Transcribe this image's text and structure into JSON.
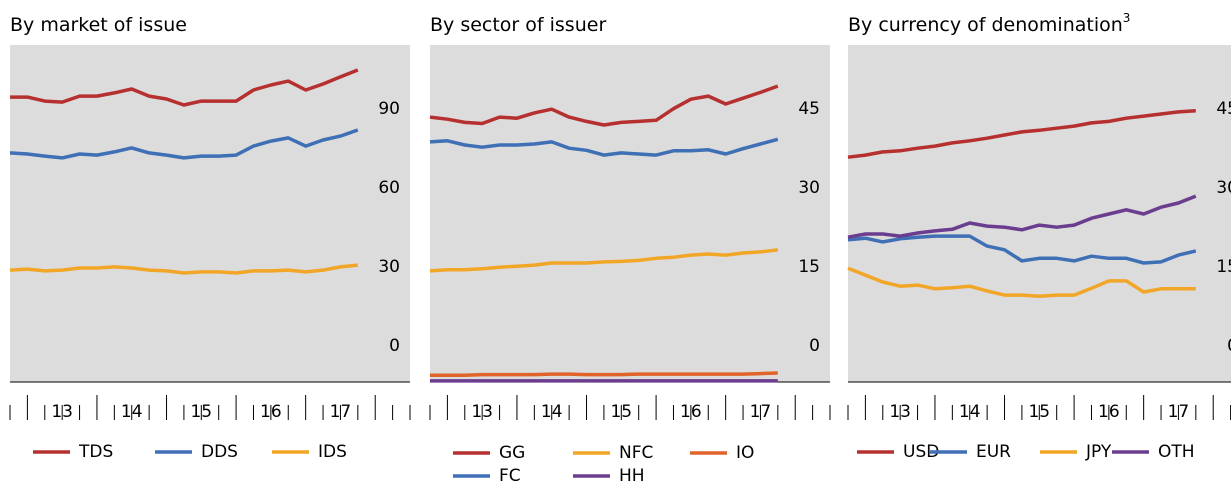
{
  "chart_data": [
    {
      "type": "line",
      "title": "By market of issue",
      "x": [
        2012.75,
        2013,
        2013.25,
        2013.5,
        2013.75,
        2014,
        2014.25,
        2014.5,
        2014.75,
        2015,
        2015.25,
        2015.5,
        2015.75,
        2016,
        2016.25,
        2016.5,
        2016.75,
        2017,
        2017.25,
        2017.5,
        2017.75
      ],
      "xlim": [
        2012.75,
        2018.5
      ],
      "xticks": [
        {
          "value": 2013.5,
          "label": "13"
        },
        {
          "value": 2014.5,
          "label": "14"
        },
        {
          "value": 2015.5,
          "label": "15"
        },
        {
          "value": 2016.5,
          "label": "16"
        },
        {
          "value": 2017.5,
          "label": "17"
        }
      ],
      "ylim": [
        0,
        128
      ],
      "yticks": [
        0,
        30,
        60,
        90
      ],
      "grid": false,
      "series": [
        {
          "name": "TDS",
          "color": "#b5302f",
          "values": [
            108.2,
            108.2,
            106.7,
            106.3,
            108.6,
            108.6,
            109.8,
            111.3,
            108.6,
            107.5,
            105.2,
            106.7,
            106.7,
            106.7,
            110.9,
            112.8,
            114.3,
            110.9,
            113.2,
            115.9,
            118.5
          ]
        },
        {
          "name": "DDS",
          "color": "#3f6fb5",
          "values": [
            87.0,
            86.6,
            85.8,
            85.1,
            86.6,
            86.2,
            87.4,
            88.9,
            87.0,
            86.2,
            85.1,
            85.8,
            85.8,
            86.2,
            89.6,
            91.5,
            92.7,
            89.6,
            91.9,
            93.4,
            95.7
          ]
        },
        {
          "name": "IDS",
          "color": "#f2a628",
          "values": [
            42.5,
            42.9,
            42.2,
            42.5,
            43.3,
            43.3,
            43.7,
            43.3,
            42.5,
            42.2,
            41.4,
            41.8,
            41.8,
            41.4,
            42.2,
            42.2,
            42.5,
            41.8,
            42.5,
            43.7,
            44.4
          ]
        }
      ]
    },
    {
      "type": "line",
      "title": "By sector of issuer",
      "x": [
        2012.75,
        2013,
        2013.25,
        2013.5,
        2013.75,
        2014,
        2014.25,
        2014.5,
        2014.75,
        2015,
        2015.25,
        2015.5,
        2015.75,
        2016,
        2016.25,
        2016.5,
        2016.75,
        2017,
        2017.25,
        2017.5,
        2017.75
      ],
      "xlim": [
        2012.75,
        2018.5
      ],
      "xticks": [
        {
          "value": 2013.5,
          "label": "13"
        },
        {
          "value": 2014.5,
          "label": "14"
        },
        {
          "value": 2015.5,
          "label": "15"
        },
        {
          "value": 2016.5,
          "label": "16"
        },
        {
          "value": 2017.5,
          "label": "17"
        }
      ],
      "ylim": [
        0,
        64
      ],
      "yticks": [
        0,
        15,
        30,
        45
      ],
      "grid": false,
      "series": [
        {
          "name": "GG",
          "color": "#b5302f",
          "values": [
            50.3,
            49.9,
            49.3,
            49.1,
            50.3,
            50.1,
            51.1,
            51.8,
            50.3,
            49.5,
            48.8,
            49.3,
            49.5,
            49.7,
            51.9,
            53.7,
            54.3,
            52.8,
            53.9,
            55.0,
            56.2
          ]
        },
        {
          "name": "NFC",
          "color": "#f2a628",
          "values": [
            21.1,
            21.3,
            21.3,
            21.5,
            21.8,
            22.0,
            22.2,
            22.6,
            22.6,
            22.6,
            22.8,
            22.9,
            23.1,
            23.5,
            23.7,
            24.1,
            24.3,
            24.1,
            24.5,
            24.7,
            25.1
          ]
        },
        {
          "name": "IO",
          "color": "#e0642a",
          "values": [
            1.3,
            1.3,
            1.3,
            1.4,
            1.4,
            1.4,
            1.4,
            1.5,
            1.5,
            1.4,
            1.4,
            1.4,
            1.5,
            1.5,
            1.5,
            1.5,
            1.5,
            1.5,
            1.5,
            1.6,
            1.7
          ]
        },
        {
          "name": "FC",
          "color": "#3f6fb5",
          "values": [
            45.6,
            45.8,
            45.0,
            44.6,
            45.0,
            45.0,
            45.2,
            45.6,
            44.4,
            44.0,
            43.1,
            43.5,
            43.3,
            43.1,
            43.9,
            43.9,
            44.1,
            43.3,
            44.3,
            45.2,
            46.1
          ]
        },
        {
          "name": "HH",
          "color": "#6a3d8f",
          "values": [
            0.2,
            0.2,
            0.2,
            0.2,
            0.2,
            0.2,
            0.2,
            0.2,
            0.2,
            0.2,
            0.2,
            0.2,
            0.2,
            0.2,
            0.2,
            0.2,
            0.2,
            0.2,
            0.2,
            0.2,
            0.2
          ]
        }
      ]
    },
    {
      "type": "line",
      "title": "By currency of denomination",
      "title_note": "3",
      "x": [
        2012.75,
        2013,
        2013.25,
        2013.5,
        2013.75,
        2014,
        2014.25,
        2014.5,
        2014.75,
        2015,
        2015.25,
        2015.5,
        2015.75,
        2016,
        2016.25,
        2016.5,
        2016.75,
        2017,
        2017.25,
        2017.5,
        2017.75
      ],
      "xlim": [
        2012.75,
        2018.5
      ],
      "xticks": [
        {
          "value": 2013.5,
          "label": "13"
        },
        {
          "value": 2014.5,
          "label": "14"
        },
        {
          "value": 2015.5,
          "label": "15"
        },
        {
          "value": 2016.5,
          "label": "16"
        },
        {
          "value": 2017.5,
          "label": "17"
        }
      ],
      "ylim": [
        0,
        64
      ],
      "yticks": [
        0,
        15,
        30,
        45
      ],
      "grid": false,
      "series": [
        {
          "name": "USD",
          "color": "#b5302f",
          "values": [
            42.7,
            43.1,
            43.7,
            43.9,
            44.4,
            44.8,
            45.4,
            45.8,
            46.3,
            46.9,
            47.5,
            47.8,
            48.2,
            48.6,
            49.2,
            49.5,
            50.1,
            50.5,
            50.9,
            51.3,
            51.5
          ]
        },
        {
          "name": "EUR",
          "color": "#3f6fb5",
          "values": [
            27.0,
            27.3,
            26.6,
            27.2,
            27.5,
            27.7,
            27.7,
            27.7,
            25.8,
            25.1,
            23.0,
            23.5,
            23.5,
            23.0,
            23.9,
            23.5,
            23.5,
            22.6,
            22.8,
            24.1,
            24.9
          ]
        },
        {
          "name": "JPY",
          "color": "#f2a628",
          "values": [
            21.6,
            20.3,
            19.0,
            18.2,
            18.4,
            17.7,
            17.9,
            18.2,
            17.3,
            16.5,
            16.5,
            16.3,
            16.5,
            16.5,
            17.8,
            19.2,
            19.2,
            17.1,
            17.7,
            17.7,
            17.7
          ]
        },
        {
          "name": "OTH",
          "color": "#6a3d8f",
          "values": [
            27.5,
            28.1,
            28.1,
            27.7,
            28.3,
            28.7,
            29.0,
            30.2,
            29.6,
            29.4,
            28.9,
            29.8,
            29.4,
            29.8,
            31.1,
            31.9,
            32.7,
            31.9,
            33.2,
            34.0,
            35.3
          ]
        }
      ]
    }
  ]
}
